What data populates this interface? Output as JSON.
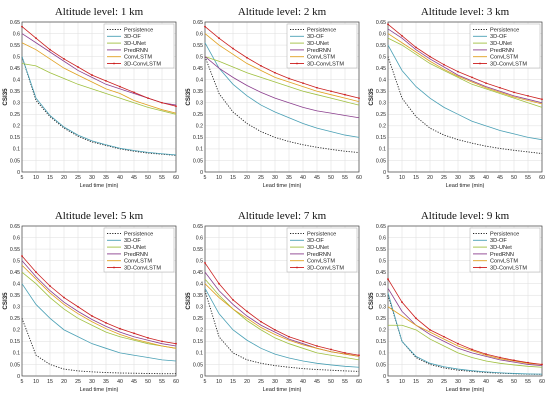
{
  "figure": {
    "panels": [
      {
        "title": "Altitude level: 1 km"
      },
      {
        "title": "Altitude level: 2 km"
      },
      {
        "title": "Altitude level: 3 km"
      },
      {
        "title": "Altitude level: 5 km"
      },
      {
        "title": "Altitude level: 7 km"
      },
      {
        "title": "Altitude level: 9 km"
      }
    ]
  },
  "chart_data": [
    {
      "type": "line",
      "title": "Altitude level: 1 km",
      "xlabel": "Lead time (min)",
      "ylabel": "CSI35",
      "xlim": [
        5,
        60
      ],
      "ylim": [
        0,
        0.65
      ],
      "xticks": [
        5,
        10,
        15,
        20,
        25,
        30,
        35,
        40,
        45,
        50,
        55,
        60
      ],
      "yticks": [
        0,
        0.05,
        0.1,
        0.15,
        0.2,
        0.25,
        0.3,
        0.35,
        0.4,
        0.45,
        0.5,
        0.55,
        0.6,
        0.65
      ],
      "grid": true,
      "legend_position": "top-right",
      "x": [
        5,
        10,
        15,
        20,
        25,
        30,
        35,
        40,
        45,
        50,
        55,
        60
      ],
      "series": [
        {
          "name": "Persistence",
          "color": "#222222",
          "style": "dotted",
          "values": [
            0.5,
            0.31,
            0.24,
            0.19,
            0.155,
            0.13,
            0.115,
            0.1,
            0.09,
            0.082,
            0.077,
            0.072
          ]
        },
        {
          "name": "3D-OF",
          "color": "#4aa0b5",
          "style": "solid",
          "values": [
            0.5,
            0.32,
            0.245,
            0.195,
            0.16,
            0.135,
            0.118,
            0.103,
            0.093,
            0.085,
            0.079,
            0.074
          ]
        },
        {
          "name": "3D-UNet",
          "color": "#a0c040",
          "style": "solid",
          "values": [
            0.47,
            0.46,
            0.43,
            0.405,
            0.38,
            0.36,
            0.34,
            0.32,
            0.3,
            0.28,
            0.265,
            0.25
          ]
        },
        {
          "name": "PredRNN",
          "color": "#8b3f8e",
          "style": "solid",
          "values": [
            0.6,
            0.56,
            0.52,
            0.48,
            0.44,
            0.41,
            0.38,
            0.36,
            0.34,
            0.32,
            0.3,
            0.29
          ]
        },
        {
          "name": "ConvLSTM",
          "color": "#e0a020",
          "style": "solid",
          "values": [
            0.56,
            0.53,
            0.49,
            0.45,
            0.42,
            0.39,
            0.36,
            0.34,
            0.31,
            0.29,
            0.27,
            0.255
          ]
        },
        {
          "name": "3D-ConvLSTM",
          "color": "#cc1f1f",
          "style": "solid-markers",
          "values": [
            0.63,
            0.58,
            0.53,
            0.49,
            0.455,
            0.42,
            0.395,
            0.37,
            0.345,
            0.32,
            0.3,
            0.285
          ]
        }
      ]
    },
    {
      "type": "line",
      "title": "Altitude level: 2 km",
      "xlabel": "Lead time (min)",
      "ylabel": "CSI35",
      "xlim": [
        5,
        60
      ],
      "ylim": [
        0,
        0.65
      ],
      "xticks": [
        5,
        10,
        15,
        20,
        25,
        30,
        35,
        40,
        45,
        50,
        55,
        60
      ],
      "yticks": [
        0,
        0.05,
        0.1,
        0.15,
        0.2,
        0.25,
        0.3,
        0.35,
        0.4,
        0.45,
        0.5,
        0.55,
        0.6,
        0.65
      ],
      "grid": true,
      "legend_position": "top-right",
      "x": [
        5,
        10,
        15,
        20,
        25,
        30,
        35,
        40,
        45,
        50,
        55,
        60
      ],
      "series": [
        {
          "name": "Persistence",
          "color": "#222222",
          "style": "dotted",
          "values": [
            0.5,
            0.34,
            0.26,
            0.21,
            0.175,
            0.15,
            0.132,
            0.118,
            0.107,
            0.098,
            0.09,
            0.084
          ]
        },
        {
          "name": "3D-OF",
          "color": "#4aa0b5",
          "style": "solid",
          "values": [
            0.56,
            0.45,
            0.38,
            0.33,
            0.29,
            0.26,
            0.235,
            0.21,
            0.19,
            0.175,
            0.16,
            0.15
          ]
        },
        {
          "name": "3D-UNet",
          "color": "#a0c040",
          "style": "solid",
          "values": [
            0.5,
            0.48,
            0.455,
            0.43,
            0.41,
            0.39,
            0.37,
            0.35,
            0.335,
            0.32,
            0.305,
            0.29
          ]
        },
        {
          "name": "PredRNN",
          "color": "#8b3f8e",
          "style": "solid",
          "values": [
            0.5,
            0.45,
            0.41,
            0.375,
            0.345,
            0.32,
            0.3,
            0.28,
            0.265,
            0.255,
            0.245,
            0.235
          ]
        },
        {
          "name": "ConvLSTM",
          "color": "#e0a020",
          "style": "solid",
          "values": [
            0.6,
            0.55,
            0.51,
            0.47,
            0.44,
            0.41,
            0.39,
            0.37,
            0.35,
            0.335,
            0.32,
            0.305
          ]
        },
        {
          "name": "3D-ConvLSTM",
          "color": "#cc1f1f",
          "style": "solid-markers",
          "values": [
            0.63,
            0.58,
            0.535,
            0.495,
            0.46,
            0.43,
            0.405,
            0.385,
            0.365,
            0.35,
            0.335,
            0.32
          ]
        }
      ]
    },
    {
      "type": "line",
      "title": "Altitude level: 3 km",
      "xlabel": "Lead time (min)",
      "ylabel": "CSI35",
      "xlim": [
        5,
        60
      ],
      "ylim": [
        0,
        0.65
      ],
      "xticks": [
        5,
        10,
        15,
        20,
        25,
        30,
        35,
        40,
        45,
        50,
        55,
        60
      ],
      "yticks": [
        0,
        0.05,
        0.1,
        0.15,
        0.2,
        0.25,
        0.3,
        0.35,
        0.4,
        0.45,
        0.5,
        0.55,
        0.6,
        0.65
      ],
      "grid": true,
      "legend_position": "top-right",
      "x": [
        5,
        10,
        15,
        20,
        25,
        30,
        35,
        40,
        45,
        50,
        55,
        60
      ],
      "series": [
        {
          "name": "Persistence",
          "color": "#222222",
          "style": "dotted",
          "values": [
            0.5,
            0.32,
            0.24,
            0.19,
            0.16,
            0.14,
            0.125,
            0.112,
            0.102,
            0.094,
            0.087,
            0.08
          ]
        },
        {
          "name": "3D-OF",
          "color": "#4aa0b5",
          "style": "solid",
          "values": [
            0.55,
            0.44,
            0.37,
            0.32,
            0.28,
            0.25,
            0.22,
            0.2,
            0.18,
            0.165,
            0.15,
            0.14
          ]
        },
        {
          "name": "3D-UNet",
          "color": "#a0c040",
          "style": "solid",
          "values": [
            0.58,
            0.55,
            0.51,
            0.47,
            0.44,
            0.41,
            0.38,
            0.36,
            0.34,
            0.32,
            0.3,
            0.28
          ]
        },
        {
          "name": "PredRNN",
          "color": "#8b3f8e",
          "style": "solid",
          "values": [
            0.62,
            0.58,
            0.53,
            0.49,
            0.455,
            0.42,
            0.395,
            0.37,
            0.35,
            0.33,
            0.315,
            0.3
          ]
        },
        {
          "name": "ConvLSTM",
          "color": "#e0a020",
          "style": "solid",
          "values": [
            0.6,
            0.56,
            0.52,
            0.48,
            0.445,
            0.415,
            0.39,
            0.365,
            0.345,
            0.325,
            0.31,
            0.295
          ]
        },
        {
          "name": "3D-ConvLSTM",
          "color": "#cc1f1f",
          "style": "solid-markers",
          "values": [
            0.64,
            0.59,
            0.54,
            0.5,
            0.465,
            0.435,
            0.41,
            0.385,
            0.365,
            0.345,
            0.33,
            0.315
          ]
        }
      ]
    },
    {
      "type": "line",
      "title": "Altitude level: 5 km",
      "xlabel": "Lead time (min)",
      "ylabel": "CSI35",
      "xlim": [
        5,
        60
      ],
      "ylim": [
        0,
        0.65
      ],
      "xticks": [
        5,
        10,
        15,
        20,
        25,
        30,
        35,
        40,
        45,
        50,
        55,
        60
      ],
      "yticks": [
        0,
        0.05,
        0.1,
        0.15,
        0.2,
        0.25,
        0.3,
        0.35,
        0.4,
        0.45,
        0.5,
        0.55,
        0.6,
        0.65
      ],
      "grid": true,
      "legend_position": "top-right",
      "x": [
        5,
        10,
        15,
        20,
        25,
        30,
        35,
        40,
        45,
        50,
        55,
        60
      ],
      "series": [
        {
          "name": "Persistence",
          "color": "#222222",
          "style": "dotted",
          "values": [
            0.25,
            0.09,
            0.05,
            0.03,
            0.022,
            0.018,
            0.015,
            0.013,
            0.012,
            0.011,
            0.01,
            0.01
          ]
        },
        {
          "name": "3D-OF",
          "color": "#4aa0b5",
          "style": "solid",
          "values": [
            0.4,
            0.31,
            0.25,
            0.2,
            0.17,
            0.14,
            0.12,
            0.1,
            0.09,
            0.08,
            0.07,
            0.065
          ]
        },
        {
          "name": "3D-UNet",
          "color": "#a0c040",
          "style": "solid",
          "values": [
            0.45,
            0.4,
            0.34,
            0.29,
            0.25,
            0.22,
            0.19,
            0.17,
            0.155,
            0.14,
            0.13,
            0.12
          ]
        },
        {
          "name": "PredRNN",
          "color": "#8b3f8e",
          "style": "solid",
          "values": [
            0.5,
            0.43,
            0.37,
            0.32,
            0.28,
            0.245,
            0.215,
            0.19,
            0.17,
            0.155,
            0.14,
            0.13
          ]
        },
        {
          "name": "ConvLSTM",
          "color": "#e0a020",
          "style": "solid",
          "values": [
            0.48,
            0.42,
            0.36,
            0.31,
            0.27,
            0.235,
            0.205,
            0.18,
            0.16,
            0.145,
            0.13,
            0.12
          ]
        },
        {
          "name": "3D-ConvLSTM",
          "color": "#cc1f1f",
          "style": "solid-markers",
          "values": [
            0.52,
            0.45,
            0.39,
            0.34,
            0.3,
            0.26,
            0.23,
            0.205,
            0.185,
            0.165,
            0.15,
            0.14
          ]
        }
      ]
    },
    {
      "type": "line",
      "title": "Altitude level: 7 km",
      "xlabel": "Lead time (min)",
      "ylabel": "CSI35",
      "xlim": [
        5,
        60
      ],
      "ylim": [
        0,
        0.65
      ],
      "xticks": [
        5,
        10,
        15,
        20,
        25,
        30,
        35,
        40,
        45,
        50,
        55,
        60
      ],
      "yticks": [
        0,
        0.05,
        0.1,
        0.15,
        0.2,
        0.25,
        0.3,
        0.35,
        0.4,
        0.45,
        0.5,
        0.55,
        0.6,
        0.65
      ],
      "grid": true,
      "legend_position": "top-right",
      "x": [
        5,
        10,
        15,
        20,
        25,
        30,
        35,
        40,
        45,
        50,
        55,
        60
      ],
      "series": [
        {
          "name": "Persistence",
          "color": "#222222",
          "style": "dotted",
          "values": [
            0.37,
            0.17,
            0.1,
            0.07,
            0.055,
            0.045,
            0.038,
            0.032,
            0.028,
            0.025,
            0.022,
            0.02
          ]
        },
        {
          "name": "3D-OF",
          "color": "#4aa0b5",
          "style": "solid",
          "values": [
            0.38,
            0.27,
            0.2,
            0.155,
            0.12,
            0.095,
            0.078,
            0.065,
            0.055,
            0.048,
            0.042,
            0.038
          ]
        },
        {
          "name": "3D-UNet",
          "color": "#a0c040",
          "style": "solid",
          "values": [
            0.42,
            0.35,
            0.29,
            0.24,
            0.2,
            0.165,
            0.14,
            0.12,
            0.1,
            0.09,
            0.08,
            0.07
          ]
        },
        {
          "name": "PredRNN",
          "color": "#8b3f8e",
          "style": "solid",
          "values": [
            0.45,
            0.37,
            0.31,
            0.26,
            0.22,
            0.19,
            0.16,
            0.14,
            0.12,
            0.105,
            0.095,
            0.085
          ]
        },
        {
          "name": "ConvLSTM",
          "color": "#e0a020",
          "style": "solid",
          "values": [
            0.4,
            0.34,
            0.29,
            0.25,
            0.21,
            0.18,
            0.155,
            0.135,
            0.12,
            0.105,
            0.095,
            0.085
          ]
        },
        {
          "name": "3D-ConvLSTM",
          "color": "#cc1f1f",
          "style": "solid-markers",
          "values": [
            0.49,
            0.4,
            0.33,
            0.28,
            0.235,
            0.2,
            0.17,
            0.15,
            0.13,
            0.115,
            0.1,
            0.09
          ]
        }
      ]
    },
    {
      "type": "line",
      "title": "Altitude level: 9 km",
      "xlabel": "Lead time (min)",
      "ylabel": "CSI35",
      "xlim": [
        5,
        60
      ],
      "ylim": [
        0,
        0.65
      ],
      "xticks": [
        5,
        10,
        15,
        20,
        25,
        30,
        35,
        40,
        45,
        50,
        55,
        60
      ],
      "yticks": [
        0,
        0.05,
        0.1,
        0.15,
        0.2,
        0.25,
        0.3,
        0.35,
        0.4,
        0.45,
        0.5,
        0.55,
        0.6,
        0.65
      ],
      "grid": true,
      "legend_position": "top-right",
      "x": [
        5,
        10,
        15,
        20,
        25,
        30,
        35,
        40,
        45,
        50,
        55,
        60
      ],
      "series": [
        {
          "name": "Persistence",
          "color": "#222222",
          "style": "dotted",
          "values": [
            0.35,
            0.15,
            0.08,
            0.05,
            0.035,
            0.025,
            0.02,
            0.015,
            0.012,
            0.01,
            0.008,
            0.007
          ]
        },
        {
          "name": "3D-OF",
          "color": "#4aa0b5",
          "style": "solid",
          "values": [
            0.36,
            0.15,
            0.085,
            0.055,
            0.04,
            0.03,
            0.023,
            0.018,
            0.014,
            0.011,
            0.009,
            0.008
          ]
        },
        {
          "name": "3D-UNet",
          "color": "#a0c040",
          "style": "solid",
          "values": [
            0.22,
            0.22,
            0.2,
            0.16,
            0.13,
            0.1,
            0.08,
            0.065,
            0.055,
            0.048,
            0.042,
            0.038
          ]
        },
        {
          "name": "PredRNN",
          "color": "#8b3f8e",
          "style": "solid",
          "values": [
            0.38,
            0.28,
            0.22,
            0.18,
            0.15,
            0.12,
            0.1,
            0.085,
            0.07,
            0.06,
            0.05,
            0.045
          ]
        },
        {
          "name": "ConvLSTM",
          "color": "#e0a020",
          "style": "solid",
          "values": [
            0.3,
            0.26,
            0.22,
            0.19,
            0.16,
            0.13,
            0.11,
            0.09,
            0.075,
            0.065,
            0.055,
            0.05
          ]
        },
        {
          "name": "3D-ConvLSTM",
          "color": "#cc1f1f",
          "style": "solid-markers",
          "values": [
            0.42,
            0.32,
            0.25,
            0.2,
            0.17,
            0.14,
            0.115,
            0.095,
            0.08,
            0.068,
            0.058,
            0.05
          ]
        }
      ]
    }
  ]
}
